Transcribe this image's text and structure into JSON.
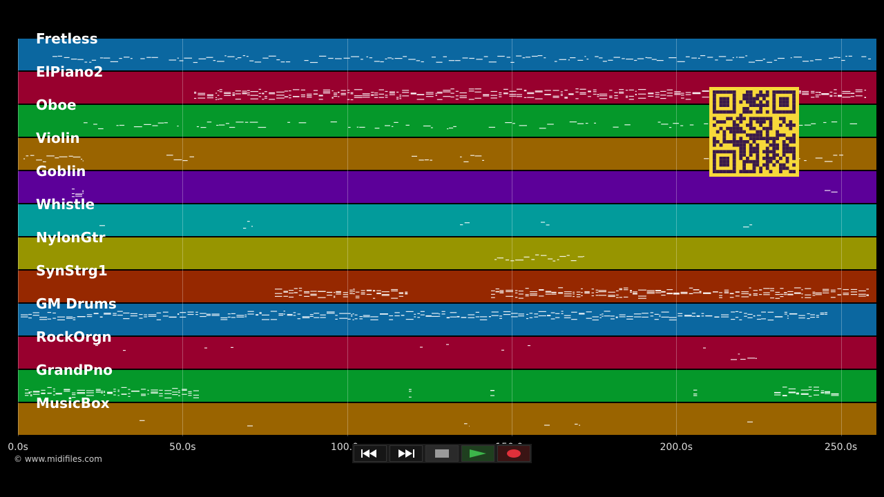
{
  "tracks": [
    {
      "name": "Fretless",
      "color": "#0b67a0"
    },
    {
      "name": "ElPiano2",
      "color": "#98002e"
    },
    {
      "name": "Oboe",
      "color": "#05982a"
    },
    {
      "name": "Violin",
      "color": "#9a6400"
    },
    {
      "name": "Goblin",
      "color": "#5c0099"
    },
    {
      "name": "Whistle",
      "color": "#029b9b"
    },
    {
      "name": "NylonGtr",
      "color": "#979500"
    },
    {
      "name": "SynStrg1",
      "color": "#962800"
    },
    {
      "name": "GM Drums",
      "color": "#0b67a0"
    },
    {
      "name": "RockOrgn",
      "color": "#98002e"
    },
    {
      "name": "GrandPno",
      "color": "#05982a"
    },
    {
      "name": "MusicBox",
      "color": "#9a6400"
    }
  ],
  "timeline": {
    "ticks": [
      "0.0s",
      "50.0s",
      "100.0s",
      "150.0s",
      "200.0s",
      "250.0s"
    ]
  },
  "transport": {
    "rewind_icon": "rewind-icon",
    "forward_icon": "fast-forward-icon",
    "stop_icon": "stop-icon",
    "play_icon": "play-icon",
    "record_icon": "record-icon",
    "play_color": "#3cb54a",
    "record_color": "#e0303a"
  },
  "copyright": "© www.midifiles.com"
}
